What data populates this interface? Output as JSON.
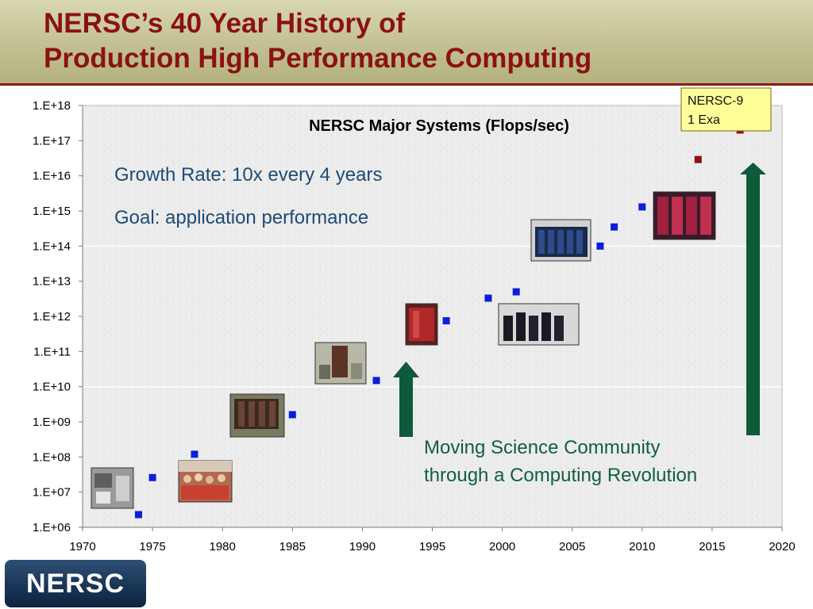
{
  "slide": {
    "title_line1": "NERSC’s 40 Year History of",
    "title_line2": "Production High Performance Computing",
    "logo_text": "NERSC"
  },
  "chart_data": {
    "type": "scatter",
    "title": "NERSC Major Systems (Flops/sec)",
    "xlabel": "",
    "ylabel": "",
    "xlim": [
      1970,
      2020
    ],
    "ylim_log10": [
      6,
      18
    ],
    "y_scale": "log",
    "x_ticks": [
      "1970",
      "1975",
      "1980",
      "1985",
      "1990",
      "1995",
      "2000",
      "2005",
      "2010",
      "2015",
      "2020"
    ],
    "y_ticks": [
      "1.E+06",
      "1.E+07",
      "1.E+08",
      "1.E+09",
      "1.E+10",
      "1.E+11",
      "1.E+12",
      "1.E+13",
      "1.E+14",
      "1.E+15",
      "1.E+16",
      "1.E+17",
      "1.E+18"
    ],
    "grid": "horizontal at 1.E+10 and 1.E+14",
    "series": [
      {
        "color": "#0b1fd8",
        "points": [
          {
            "x": 1974,
            "y": 2300000.0
          },
          {
            "x": 1975,
            "y": 26000000.0
          },
          {
            "x": 1978,
            "y": 120000000.0
          },
          {
            "x": 1985,
            "y": 1600000000.0
          },
          {
            "x": 1991,
            "y": 15000000000.0
          },
          {
            "x": 1996,
            "y": 750000000000.0
          },
          {
            "x": 1999,
            "y": 3300000000000.0
          },
          {
            "x": 2001,
            "y": 5000000000000.0
          },
          {
            "x": 2007,
            "y": 100000000000000.0
          },
          {
            "x": 2008,
            "y": 350000000000000.0
          },
          {
            "x": 2010,
            "y": 1300000000000000.0
          }
        ]
      },
      {
        "color": "#8b1212",
        "points": [
          {
            "x": 2014,
            "y": 2.9e+16
          },
          {
            "x": 2017,
            "y": 2e+17
          }
        ]
      },
      {
        "color": "#8b1212",
        "marker": "star",
        "points": [
          {
            "x": 2018.5,
            "y": 3.2e+17
          }
        ]
      }
    ],
    "annotations": {
      "growth_rate": "Growth Rate: 10x every 4 years",
      "goal": "Goal: application performance",
      "moving_line1": "Moving Science Community",
      "moving_line2": "through a Computing Revolution",
      "nersc9_line1": "NERSC-9",
      "nersc9_line2": "1 Exa"
    },
    "colors": {
      "text_blue": "#1d4a78",
      "text_green": "#11603c",
      "arrow_green": "#0f5a3a",
      "callout_fill": "#ffff9a"
    }
  }
}
